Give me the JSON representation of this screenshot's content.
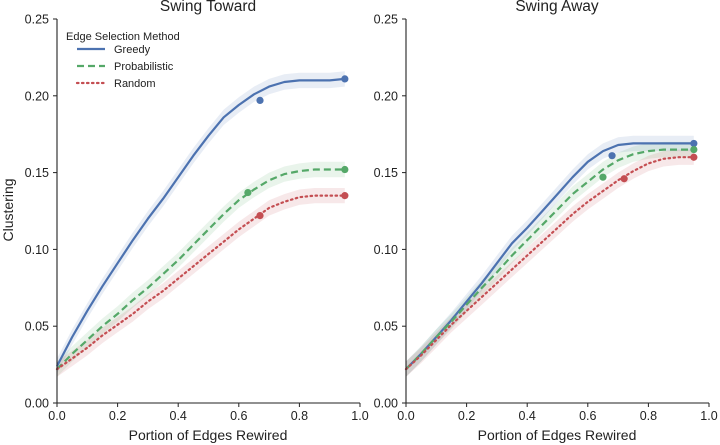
{
  "chart_data": [
    {
      "type": "line",
      "title": "Swing Toward",
      "xlabel": "Portion of Edges Rewired",
      "ylabel": "Clustering",
      "xlim": [
        0.0,
        1.0
      ],
      "ylim": [
        0.0,
        0.25
      ],
      "xticks": [
        "0.0",
        "0.2",
        "0.4",
        "0.6",
        "0.8",
        "1.0"
      ],
      "yticks": [
        "0.00",
        "0.05",
        "0.10",
        "0.15",
        "0.20",
        "0.25"
      ],
      "legend": {
        "title": "Edge Selection Method",
        "position": "top-left",
        "entries": [
          "Greedy",
          "Probabilistic",
          "Random"
        ]
      },
      "series": [
        {
          "name": "Greedy",
          "color": "#4c72b0",
          "style": "solid",
          "x": [
            0.0,
            0.05,
            0.1,
            0.15,
            0.2,
            0.25,
            0.3,
            0.35,
            0.4,
            0.45,
            0.5,
            0.55,
            0.6,
            0.65,
            0.7,
            0.75,
            0.8,
            0.85,
            0.9,
            0.95
          ],
          "y": [
            0.024,
            0.043,
            0.06,
            0.076,
            0.091,
            0.106,
            0.12,
            0.133,
            0.147,
            0.161,
            0.174,
            0.186,
            0.194,
            0.201,
            0.206,
            0.209,
            0.21,
            0.21,
            0.21,
            0.211
          ],
          "band": 0.005,
          "marker": [
            0.67,
            0.197
          ]
        },
        {
          "name": "Probabilistic",
          "color": "#55a868",
          "style": "dashed",
          "x": [
            0.0,
            0.05,
            0.1,
            0.15,
            0.2,
            0.25,
            0.3,
            0.35,
            0.4,
            0.45,
            0.5,
            0.55,
            0.6,
            0.65,
            0.7,
            0.75,
            0.8,
            0.85,
            0.9,
            0.95
          ],
          "y": [
            0.022,
            0.032,
            0.041,
            0.05,
            0.058,
            0.067,
            0.075,
            0.084,
            0.093,
            0.103,
            0.113,
            0.123,
            0.132,
            0.139,
            0.145,
            0.149,
            0.151,
            0.152,
            0.152,
            0.152
          ],
          "band": 0.005,
          "marker": [
            0.63,
            0.137
          ]
        },
        {
          "name": "Random",
          "color": "#c44e52",
          "style": "dotted",
          "x": [
            0.0,
            0.05,
            0.1,
            0.15,
            0.2,
            0.25,
            0.3,
            0.35,
            0.4,
            0.45,
            0.5,
            0.55,
            0.6,
            0.65,
            0.7,
            0.75,
            0.8,
            0.85,
            0.9,
            0.95
          ],
          "y": [
            0.022,
            0.029,
            0.036,
            0.044,
            0.051,
            0.058,
            0.066,
            0.073,
            0.081,
            0.089,
            0.097,
            0.105,
            0.113,
            0.12,
            0.127,
            0.131,
            0.134,
            0.135,
            0.135,
            0.135
          ],
          "band": 0.005,
          "marker": [
            0.67,
            0.122
          ]
        }
      ]
    },
    {
      "type": "line",
      "title": "Swing Away",
      "xlabel": "Portion of Edges Rewired",
      "ylabel": "",
      "xlim": [
        0.0,
        1.0
      ],
      "ylim": [
        0.0,
        0.25
      ],
      "xticks": [
        "0.0",
        "0.2",
        "0.4",
        "0.6",
        "0.8",
        "1.0"
      ],
      "yticks": [
        "0.00",
        "0.05",
        "0.10",
        "0.15",
        "0.20",
        "0.25"
      ],
      "series": [
        {
          "name": "Greedy",
          "color": "#4c72b0",
          "style": "solid",
          "x": [
            0.0,
            0.05,
            0.1,
            0.15,
            0.2,
            0.25,
            0.3,
            0.35,
            0.4,
            0.45,
            0.5,
            0.55,
            0.6,
            0.65,
            0.7,
            0.75,
            0.8,
            0.85,
            0.9,
            0.95
          ],
          "y": [
            0.022,
            0.032,
            0.043,
            0.054,
            0.066,
            0.078,
            0.091,
            0.104,
            0.114,
            0.125,
            0.136,
            0.147,
            0.157,
            0.164,
            0.168,
            0.169,
            0.169,
            0.169,
            0.169,
            0.169
          ],
          "band": 0.005,
          "marker": [
            0.68,
            0.161
          ]
        },
        {
          "name": "Probabilistic",
          "color": "#55a868",
          "style": "dashed",
          "x": [
            0.0,
            0.05,
            0.1,
            0.15,
            0.2,
            0.25,
            0.3,
            0.35,
            0.4,
            0.45,
            0.5,
            0.55,
            0.6,
            0.65,
            0.7,
            0.75,
            0.8,
            0.85,
            0.9,
            0.95
          ],
          "y": [
            0.022,
            0.032,
            0.043,
            0.053,
            0.064,
            0.075,
            0.085,
            0.096,
            0.106,
            0.116,
            0.126,
            0.136,
            0.144,
            0.152,
            0.158,
            0.162,
            0.164,
            0.165,
            0.165,
            0.165
          ],
          "band": 0.005,
          "marker": [
            0.65,
            0.147
          ]
        },
        {
          "name": "Random",
          "color": "#c44e52",
          "style": "dotted",
          "x": [
            0.0,
            0.05,
            0.1,
            0.15,
            0.2,
            0.25,
            0.3,
            0.35,
            0.4,
            0.45,
            0.5,
            0.55,
            0.6,
            0.65,
            0.7,
            0.75,
            0.8,
            0.85,
            0.9,
            0.95
          ],
          "y": [
            0.022,
            0.031,
            0.041,
            0.051,
            0.06,
            0.069,
            0.078,
            0.087,
            0.096,
            0.105,
            0.114,
            0.123,
            0.131,
            0.138,
            0.145,
            0.151,
            0.156,
            0.159,
            0.16,
            0.16
          ],
          "band": 0.005,
          "marker": [
            0.72,
            0.146
          ]
        }
      ]
    }
  ]
}
